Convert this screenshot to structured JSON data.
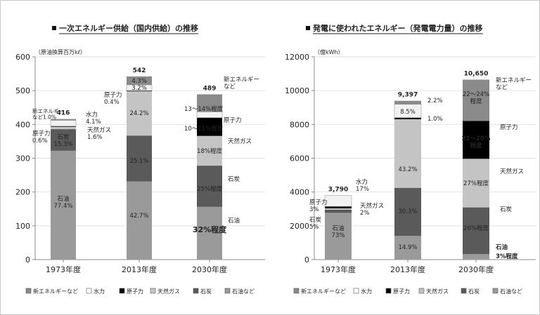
{
  "chart_data": [
    {
      "type": "bar",
      "stacked": true,
      "title": "一次エネルギー供給（国内供給）の推移",
      "unit_label": "（原油換算百万kℓ）",
      "categories": [
        "1973年度",
        "2013年度",
        "2030年度"
      ],
      "ylim": [
        0,
        600
      ],
      "yticks": [
        "0",
        "100",
        "200",
        "300",
        "400",
        "500",
        "600"
      ],
      "totals": [
        416,
        542,
        489
      ],
      "total_labels": [
        "416",
        "542",
        "489"
      ],
      "series": [
        {
          "name": "石油など",
          "color": "#9a9a9a",
          "values": [
            322,
            231,
            156
          ]
        },
        {
          "name": "石炭",
          "color": "#5a5a5a",
          "values": [
            64,
            136,
            122
          ]
        },
        {
          "name": "天然ガス",
          "color": "#c4c4c4",
          "values": [
            7,
            131,
            88
          ]
        },
        {
          "name": "原子力",
          "color": "#000000",
          "values": [
            2,
            2,
            54
          ]
        },
        {
          "name": "水力",
          "color": "#f2f2f2",
          "values": [
            17,
            17,
            17
          ]
        },
        {
          "name": "新エネルギーなど",
          "color": "#8a8a8a",
          "values": [
            4,
            25,
            52
          ]
        }
      ],
      "annotations": [
        {
          "text": "石油\n77.4%"
        },
        {
          "text": "石炭\n15.3%"
        },
        {
          "text": "新エネルギー\nなど1.0%"
        },
        {
          "text": "水力\n4.1%"
        },
        {
          "text": "天然ガス\n1.6%"
        },
        {
          "text": "原子力\n0.6%"
        },
        {
          "text": "42.7%"
        },
        {
          "text": "25.1%"
        },
        {
          "text": "24.2%"
        },
        {
          "text": "原子力\n0.4%"
        },
        {
          "text": "3.2%"
        },
        {
          "text": "4.3%"
        },
        {
          "text": "32%程度"
        },
        {
          "text": "石油"
        },
        {
          "text": "25%程度"
        },
        {
          "text": "石炭"
        },
        {
          "text": "18%程度"
        },
        {
          "text": "天然ガス"
        },
        {
          "text": "10～11%程度"
        },
        {
          "text": "原子力"
        },
        {
          "text": "13～14%程度"
        },
        {
          "text": "新エネルギー\nなど"
        }
      ]
    },
    {
      "type": "bar",
      "stacked": true,
      "title": "発電に使われたエネルギー（発電電力量）の推移",
      "unit_label": "（億kWh）",
      "categories": [
        "1973年度",
        "2013年度",
        "2030年度"
      ],
      "ylim": [
        0,
        12000
      ],
      "yticks": [
        "0",
        "2000",
        "4000",
        "6000",
        "8000",
        "10000",
        "12000"
      ],
      "totals": [
        3790,
        9397,
        10650
      ],
      "total_labels": [
        "3,790",
        "9,397",
        "10,650"
      ],
      "series": [
        {
          "name": "石油など",
          "color": "#9a9a9a",
          "values": [
            2767,
            1400,
            320
          ]
        },
        {
          "name": "石炭",
          "color": "#5a5a5a",
          "values": [
            190,
            2847,
            2769
          ]
        },
        {
          "name": "天然ガス",
          "color": "#c4c4c4",
          "values": [
            76,
            4060,
            2876
          ]
        },
        {
          "name": "原子力",
          "color": "#000000",
          "values": [
            114,
            94,
            2236
          ]
        },
        {
          "name": "水力",
          "color": "#f2f2f2",
          "values": [
            643,
            790,
            0
          ]
        },
        {
          "name": "新エネルギーなど",
          "color": "#8a8a8a",
          "values": [
            0,
            206,
            2449
          ]
        }
      ],
      "annotations": [
        {
          "text": "石油\n73%"
        },
        {
          "text": "石炭\n5%"
        },
        {
          "text": "原子力\n3%"
        },
        {
          "text": "水力\n17%"
        },
        {
          "text": "天然ガス\n2%"
        },
        {
          "text": "14.9%"
        },
        {
          "text": "30.3%"
        },
        {
          "text": "43.2%"
        },
        {
          "text": "1.0%"
        },
        {
          "text": "8.5%"
        },
        {
          "text": "2.2%"
        },
        {
          "text": "石油"
        },
        {
          "text": "3%程度"
        },
        {
          "text": "26%程度"
        },
        {
          "text": "石炭"
        },
        {
          "text": "27%程度"
        },
        {
          "text": "天然ガス"
        },
        {
          "text": "22～20%\n程度"
        },
        {
          "text": "原子力"
        },
        {
          "text": "22～24%\n程度"
        },
        {
          "text": "新エネルギー\nなど"
        }
      ]
    }
  ],
  "legend": [
    "新エネルギーなど",
    "水力",
    "原子力",
    "天然ガス",
    "石炭",
    "石油など"
  ]
}
